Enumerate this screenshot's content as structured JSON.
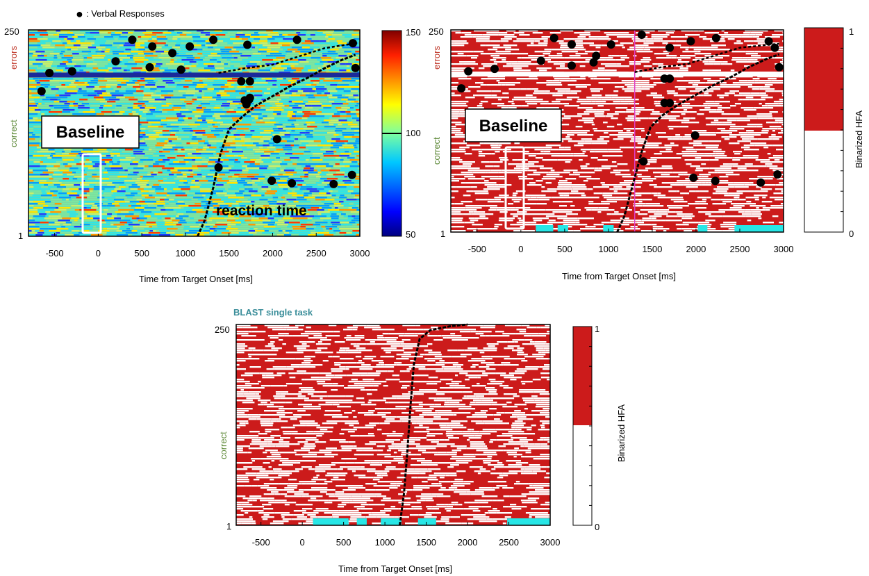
{
  "legend": {
    "marker": "●",
    "label": ": Verbal Responses"
  },
  "panel_labels": {
    "baseline": "Baseline",
    "reaction_time": "reaction time",
    "blast": "BLAST single task"
  },
  "axis_text": {
    "xlabel": "Time from Target Onset [ms]",
    "errors": "errors",
    "correct": "correct",
    "colorbar_label": "Binarized HFA"
  },
  "colors": {
    "errors_label": "#c0392b",
    "correct_label": "#5f8a3a",
    "binary_fill": "#cc1b1b",
    "sig_bar": "#27e6e6",
    "blast_title": "#3b8e9a",
    "pink_line": "#e040c8"
  },
  "chart_data": [
    {
      "type": "heatmap",
      "id": "hfa-raw",
      "xlim": [
        -800,
        3000
      ],
      "ylim": [
        1,
        250
      ],
      "x_ticks": [
        -500,
        0,
        500,
        1000,
        1500,
        2000,
        2500,
        3000
      ],
      "y_ticks": [
        1,
        250
      ],
      "colorbar": {
        "min": 50,
        "max": 150,
        "ticks": [
          50,
          100,
          150
        ]
      },
      "error_trials_from": 196,
      "verbal_responses": [
        [
          -650,
          176
        ],
        [
          -560,
          198
        ],
        [
          -300,
          200
        ],
        [
          200,
          212
        ],
        [
          390,
          238
        ],
        [
          590,
          205
        ],
        [
          620,
          230
        ],
        [
          850,
          222
        ],
        [
          1050,
          230
        ],
        [
          950,
          202
        ],
        [
          1700,
          160
        ],
        [
          1740,
          168
        ],
        [
          1740,
          188
        ],
        [
          1640,
          188
        ],
        [
          1680,
          165
        ],
        [
          1710,
          232
        ],
        [
          2280,
          238
        ],
        [
          1730,
          166
        ],
        [
          2050,
          118
        ],
        [
          1380,
          84
        ],
        [
          1990,
          68
        ],
        [
          2220,
          65
        ],
        [
          2700,
          64
        ],
        [
          2910,
          75
        ],
        [
          2950,
          204
        ],
        [
          2920,
          234
        ],
        [
          1320,
          238
        ]
      ],
      "rt_curve": [
        [
          1140,
          1
        ],
        [
          1220,
          20
        ],
        [
          1320,
          60
        ],
        [
          1400,
          100
        ],
        [
          1500,
          130
        ],
        [
          1650,
          145
        ],
        [
          1800,
          158
        ],
        [
          2000,
          170
        ],
        [
          2200,
          182
        ],
        [
          2400,
          192
        ],
        [
          2600,
          204
        ],
        [
          2800,
          214
        ],
        [
          2950,
          220
        ]
      ],
      "rt_curve_errors": [
        [
          1380,
          198
        ],
        [
          1700,
          204
        ],
        [
          2000,
          208
        ],
        [
          2300,
          218
        ],
        [
          2600,
          228
        ],
        [
          2900,
          233
        ]
      ]
    },
    {
      "type": "heatmap",
      "id": "hfa-binary",
      "xlim": [
        -800,
        3000
      ],
      "ylim": [
        1,
        250
      ],
      "x_ticks": [
        -500,
        0,
        500,
        1000,
        1500,
        2000,
        2500,
        3000
      ],
      "y_ticks": [
        1,
        250
      ],
      "colorbar": {
        "min": 0,
        "max": 1,
        "ticks": [
          0,
          1
        ]
      },
      "error_trials_from": 196,
      "marker_line_x": 1300,
      "verbal_responses": [
        [
          -680,
          178
        ],
        [
          -600,
          199
        ],
        [
          -300,
          202
        ],
        [
          230,
          212
        ],
        [
          380,
          240
        ],
        [
          580,
          232
        ],
        [
          860,
          218
        ],
        [
          1030,
          232
        ],
        [
          830,
          210
        ],
        [
          580,
          206
        ],
        [
          1640,
          190
        ],
        [
          1700,
          190
        ],
        [
          1700,
          160
        ],
        [
          1640,
          160
        ],
        [
          1700,
          228
        ],
        [
          1940,
          236
        ],
        [
          2230,
          240
        ],
        [
          2830,
          236
        ],
        [
          1990,
          120
        ],
        [
          1400,
          88
        ],
        [
          1970,
          68
        ],
        [
          2220,
          64
        ],
        [
          2740,
          62
        ],
        [
          2930,
          72
        ],
        [
          2950,
          204
        ],
        [
          2900,
          228
        ],
        [
          1380,
          244
        ]
      ],
      "rt_curve": [
        [
          1100,
          1
        ],
        [
          1180,
          20
        ],
        [
          1280,
          60
        ],
        [
          1380,
          100
        ],
        [
          1480,
          130
        ],
        [
          1620,
          145
        ],
        [
          1800,
          158
        ],
        [
          2000,
          170
        ],
        [
          2200,
          182
        ],
        [
          2400,
          192
        ],
        [
          2600,
          204
        ],
        [
          2800,
          214
        ],
        [
          2950,
          220
        ]
      ],
      "rt_curve_errors": [
        [
          1300,
          198
        ],
        [
          1600,
          204
        ],
        [
          1900,
          208
        ],
        [
          2200,
          218
        ],
        [
          2500,
          228
        ],
        [
          2950,
          233
        ]
      ],
      "significant_windows": [
        [
          170,
          370
        ],
        [
          420,
          540
        ],
        [
          940,
          1060
        ],
        [
          2020,
          2130
        ],
        [
          2440,
          3000
        ]
      ]
    },
    {
      "type": "heatmap",
      "id": "hfa-binary-blast",
      "xlim": [
        -800,
        3000
      ],
      "ylim": [
        1,
        250
      ],
      "x_ticks": [
        -500,
        0,
        500,
        1000,
        1500,
        2000,
        2500,
        3000
      ],
      "y_ticks": [
        1,
        250
      ],
      "colorbar": {
        "min": 0,
        "max": 1,
        "ticks": [
          0,
          1
        ]
      },
      "rt_curve": [
        [
          1180,
          1
        ],
        [
          1230,
          40
        ],
        [
          1270,
          90
        ],
        [
          1310,
          150
        ],
        [
          1350,
          200
        ],
        [
          1420,
          232
        ],
        [
          1550,
          243
        ],
        [
          1800,
          248
        ],
        [
          2000,
          250
        ]
      ],
      "significant_windows": [
        [
          130,
          560
        ],
        [
          660,
          780
        ],
        [
          950,
          1200
        ],
        [
          1400,
          1620
        ],
        [
          2480,
          3000
        ]
      ]
    }
  ]
}
